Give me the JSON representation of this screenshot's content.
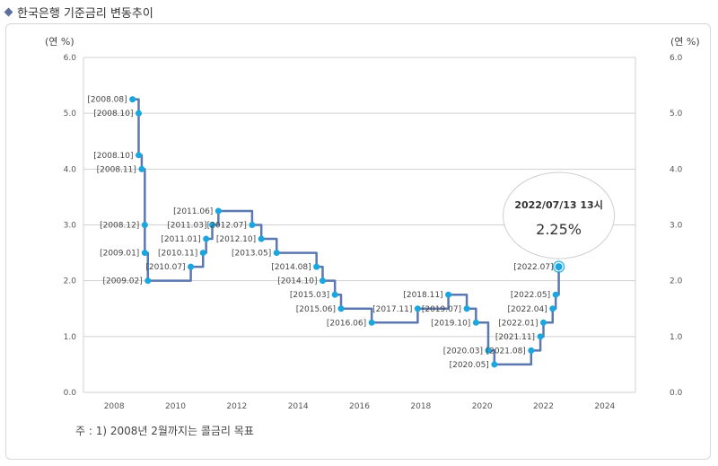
{
  "header": {
    "title": "한국은행 기준금리 변동추이"
  },
  "footnote": "주 : 1) 2008년 2월까지는 콜금리 목표",
  "tooltip": {
    "datetime": "2022/07/13 13시",
    "value": "2.25%"
  },
  "colors": {
    "line": "#5b78b0",
    "point": "#1aa7e0",
    "grid": "#d0d0d0",
    "accent_title": "#5b6f9e"
  },
  "chart_data": {
    "type": "line",
    "step": true,
    "title": "",
    "y_unit_left": "(연 %)",
    "y_unit_right": "(연 %)",
    "xlabel": "",
    "ylabel": "",
    "xlim": [
      2007,
      2025
    ],
    "ylim": [
      0,
      6
    ],
    "x_ticks": [
      2008,
      2010,
      2012,
      2014,
      2016,
      2018,
      2020,
      2022,
      2024
    ],
    "y_ticks": [
      "0.0",
      "1.0",
      "2.0",
      "3.0",
      "4.0",
      "5.0",
      "6.0"
    ],
    "grid": true,
    "legend": "none",
    "series": [
      {
        "points": [
          {
            "x": 2008.6,
            "y": 5.25,
            "label": "[2008.08]"
          },
          {
            "x": 2008.8,
            "y": 5.0,
            "label": "[2008.10]"
          },
          {
            "x": 2008.8,
            "y": 4.25,
            "label": "[2008.10]"
          },
          {
            "x": 2008.9,
            "y": 4.0,
            "label": "[2008.11]"
          },
          {
            "x": 2009.0,
            "y": 3.0,
            "label": "[2008.12]"
          },
          {
            "x": 2009.0,
            "y": 2.5,
            "label": "[2009.01]"
          },
          {
            "x": 2009.1,
            "y": 2.0,
            "label": "[2009.02]"
          },
          {
            "x": 2010.5,
            "y": 2.25,
            "label": "[2010.07]"
          },
          {
            "x": 2010.9,
            "y": 2.5,
            "label": "[2010.11]"
          },
          {
            "x": 2011.0,
            "y": 2.75,
            "label": "[2011.01]"
          },
          {
            "x": 2011.2,
            "y": 3.0,
            "label": "[2011.03]"
          },
          {
            "x": 2011.4,
            "y": 3.25,
            "label": "[2011.06]"
          },
          {
            "x": 2012.5,
            "y": 3.0,
            "label": "[2012.07]"
          },
          {
            "x": 2012.8,
            "y": 2.75,
            "label": "[2012.10]"
          },
          {
            "x": 2013.3,
            "y": 2.5,
            "label": "[2013.05]"
          },
          {
            "x": 2014.6,
            "y": 2.25,
            "label": "[2014.08]"
          },
          {
            "x": 2014.8,
            "y": 2.0,
            "label": "[2014.10]"
          },
          {
            "x": 2015.2,
            "y": 1.75,
            "label": "[2015.03]"
          },
          {
            "x": 2015.4,
            "y": 1.5,
            "label": "[2015.06]"
          },
          {
            "x": 2016.4,
            "y": 1.25,
            "label": "[2016.06]"
          },
          {
            "x": 2017.9,
            "y": 1.5,
            "label": "[2017.11]"
          },
          {
            "x": 2018.9,
            "y": 1.75,
            "label": "[2018.11]"
          },
          {
            "x": 2019.5,
            "y": 1.5,
            "label": "[2019.07]"
          },
          {
            "x": 2019.8,
            "y": 1.25,
            "label": "[2019.10]"
          },
          {
            "x": 2020.2,
            "y": 0.75,
            "label": "[2020.03]"
          },
          {
            "x": 2020.4,
            "y": 0.5,
            "label": "[2020.05]"
          },
          {
            "x": 2021.6,
            "y": 0.75,
            "label": "[2021.08]"
          },
          {
            "x": 2021.9,
            "y": 1.0,
            "label": "[2021.11]"
          },
          {
            "x": 2022.0,
            "y": 1.25,
            "label": "[2022.01]"
          },
          {
            "x": 2022.3,
            "y": 1.5,
            "label": "[2022.04]"
          },
          {
            "x": 2022.4,
            "y": 1.75,
            "label": "[2022.05]"
          },
          {
            "x": 2022.5,
            "y": 2.25,
            "label": "[2022.07]"
          }
        ]
      }
    ]
  }
}
